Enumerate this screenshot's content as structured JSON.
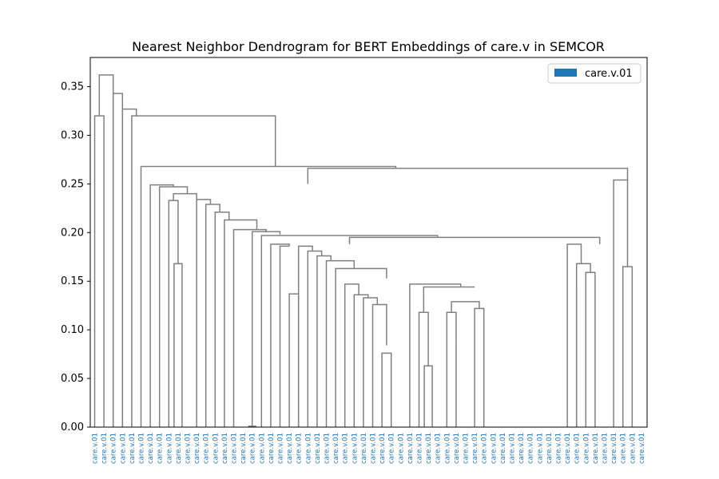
{
  "chart_data": {
    "type": "dendrogram",
    "title": "Nearest Neighbor Dendrogram for BERT Embeddings of care.v in SEMCOR",
    "xlabel": "",
    "ylabel": "",
    "ylim": [
      0,
      0.38
    ],
    "y_ticks": [
      "0.00",
      "0.05",
      "0.10",
      "0.15",
      "0.20",
      "0.25",
      "0.30",
      "0.35"
    ],
    "y_tick_values": [
      0,
      0.05,
      0.1,
      0.15,
      0.2,
      0.25,
      0.3,
      0.35
    ],
    "grid": false,
    "legend_position": "top-right",
    "legend": [
      {
        "label": "care.v.01",
        "color": "#1f77b4"
      }
    ],
    "link_color": "#808080",
    "leaf_label_color": "#1f77b4",
    "leaf_count": 60,
    "leaf_label": "care.v.01",
    "links": [
      [
        40.5,
        40.5,
        0,
        0.001
      ],
      [
        52.5,
        52.5,
        0,
        0.001
      ],
      [
        17.5,
        17.5,
        0,
        0.001
      ],
      [
        44.5,
        44.5,
        0,
        0.063
      ],
      [
        29.5,
        29.5,
        0,
        0.076
      ],
      [
        28.5,
        29.5,
        0,
        0.084
      ],
      [
        47.5,
        47.5,
        0,
        0.088
      ],
      [
        52.5,
        52.5,
        0.001,
        0.115
      ],
      [
        43.5,
        44.5,
        0,
        0.118
      ],
      [
        46.5,
        47.5,
        0,
        0.118
      ],
      [
        51.5,
        52.5,
        0,
        0.122
      ],
      [
        27.5,
        28.5,
        0,
        0.126
      ],
      [
        46.5,
        51.5,
        0.118,
        0.129
      ],
      [
        26.5,
        27.5,
        0,
        0.133
      ],
      [
        25.5,
        26.5,
        0,
        0.136
      ],
      [
        22.5,
        22.5,
        0,
        0.137
      ],
      [
        24.5,
        25.5,
        0,
        0.147
      ],
      [
        43.5,
        46.5,
        0.118,
        0.144
      ],
      [
        42.5,
        43.5,
        0,
        0.147
      ],
      [
        23.5,
        42.5,
        0.152,
        0.152
      ],
      [
        9.5,
        9.5,
        0,
        0.168
      ],
      [
        56.5,
        56.5,
        0,
        0.157
      ],
      [
        58.5,
        58.5,
        0,
        0.165
      ],
      [
        55.5,
        56.5,
        0,
        0.159
      ],
      [
        54.5,
        55.5,
        0,
        0.145
      ],
      [
        21.5,
        22.5,
        0,
        0.186
      ],
      [
        53.5,
        54.5,
        0,
        0.188
      ],
      [
        57.5,
        58.5,
        0,
        0.254
      ],
      [
        0.5,
        0.5,
        0,
        0.32
      ]
    ]
  },
  "legend_items": [
    {
      "label": "care.v.01"
    }
  ]
}
